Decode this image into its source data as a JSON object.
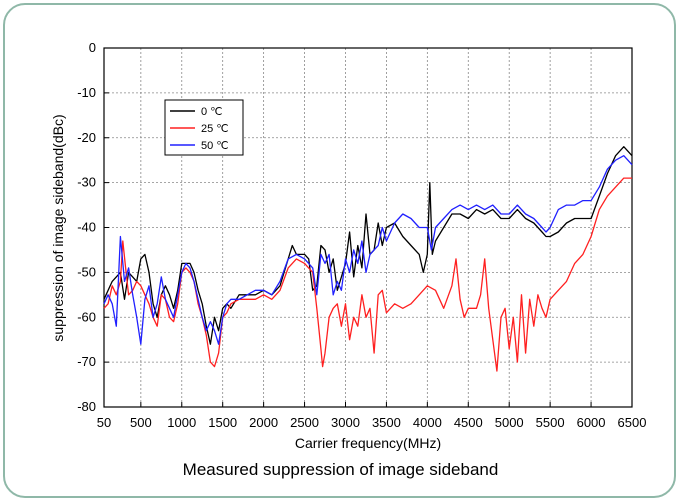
{
  "caption": "Measured suppression of image sideband",
  "chart_data": {
    "type": "line",
    "title": "",
    "xlabel": "Carrier frequency(MHz)",
    "ylabel": "suppression of image sideband(dBc)",
    "xlim": [
      50,
      6500
    ],
    "ylim": [
      -80,
      0
    ],
    "xticks": [
      50,
      500,
      1000,
      1500,
      2000,
      2500,
      3000,
      3500,
      4000,
      4500,
      5000,
      5500,
      6000,
      6500
    ],
    "yticks": [
      0,
      -10,
      -20,
      -30,
      -40,
      -50,
      -60,
      -70,
      -80
    ],
    "grid": true,
    "legend_position": "top-left",
    "series": [
      {
        "name": "0 ℃",
        "color": "#000000",
        "points": [
          [
            50,
            -56
          ],
          [
            150,
            -52
          ],
          [
            250,
            -50
          ],
          [
            300,
            -56
          ],
          [
            350,
            -50
          ],
          [
            450,
            -52
          ],
          [
            500,
            -47
          ],
          [
            550,
            -46
          ],
          [
            600,
            -50
          ],
          [
            650,
            -57
          ],
          [
            700,
            -60
          ],
          [
            750,
            -55
          ],
          [
            800,
            -53
          ],
          [
            850,
            -55
          ],
          [
            900,
            -58
          ],
          [
            950,
            -54
          ],
          [
            1000,
            -48
          ],
          [
            1050,
            -48
          ],
          [
            1100,
            -48
          ],
          [
            1150,
            -50
          ],
          [
            1200,
            -54
          ],
          [
            1250,
            -57
          ],
          [
            1300,
            -62
          ],
          [
            1350,
            -66
          ],
          [
            1400,
            -60
          ],
          [
            1450,
            -63
          ],
          [
            1500,
            -58
          ],
          [
            1550,
            -57
          ],
          [
            1600,
            -58
          ],
          [
            1700,
            -55
          ],
          [
            1800,
            -55
          ],
          [
            1900,
            -55
          ],
          [
            2000,
            -54
          ],
          [
            2100,
            -55
          ],
          [
            2200,
            -53
          ],
          [
            2300,
            -47
          ],
          [
            2350,
            -44
          ],
          [
            2400,
            -46
          ],
          [
            2500,
            -46
          ],
          [
            2550,
            -47
          ],
          [
            2600,
            -54
          ],
          [
            2650,
            -53
          ],
          [
            2700,
            -44
          ],
          [
            2750,
            -45
          ],
          [
            2800,
            -50
          ],
          [
            2850,
            -47
          ],
          [
            2900,
            -54
          ],
          [
            2950,
            -51
          ],
          [
            3000,
            -48
          ],
          [
            3050,
            -41
          ],
          [
            3100,
            -51
          ],
          [
            3150,
            -44
          ],
          [
            3200,
            -49
          ],
          [
            3250,
            -37
          ],
          [
            3300,
            -46
          ],
          [
            3350,
            -45
          ],
          [
            3400,
            -39
          ],
          [
            3450,
            -44
          ],
          [
            3500,
            -40
          ],
          [
            3600,
            -39
          ],
          [
            3700,
            -42
          ],
          [
            3800,
            -44
          ],
          [
            3900,
            -46
          ],
          [
            3950,
            -50
          ],
          [
            4000,
            -46
          ],
          [
            4030,
            -30
          ],
          [
            4060,
            -46
          ],
          [
            4100,
            -43
          ],
          [
            4200,
            -40
          ],
          [
            4300,
            -37
          ],
          [
            4400,
            -37
          ],
          [
            4500,
            -38
          ],
          [
            4600,
            -36
          ],
          [
            4700,
            -37
          ],
          [
            4800,
            -36
          ],
          [
            4900,
            -38
          ],
          [
            5000,
            -38
          ],
          [
            5100,
            -36
          ],
          [
            5200,
            -38
          ],
          [
            5300,
            -39
          ],
          [
            5400,
            -41
          ],
          [
            5450,
            -42
          ],
          [
            5500,
            -42
          ],
          [
            5600,
            -41
          ],
          [
            5700,
            -39
          ],
          [
            5800,
            -38
          ],
          [
            5900,
            -38
          ],
          [
            6000,
            -38
          ],
          [
            6100,
            -33
          ],
          [
            6200,
            -28
          ],
          [
            6300,
            -24
          ],
          [
            6400,
            -22
          ],
          [
            6500,
            -24
          ]
        ]
      },
      {
        "name": "25 ℃",
        "color": "#ff2020",
        "points": [
          [
            50,
            -58
          ],
          [
            100,
            -57
          ],
          [
            150,
            -53
          ],
          [
            200,
            -55
          ],
          [
            250,
            -52
          ],
          [
            280,
            -43
          ],
          [
            320,
            -50
          ],
          [
            350,
            -55
          ],
          [
            400,
            -54
          ],
          [
            450,
            -52
          ],
          [
            500,
            -53
          ],
          [
            550,
            -55
          ],
          [
            600,
            -57
          ],
          [
            650,
            -60
          ],
          [
            700,
            -62
          ],
          [
            750,
            -55
          ],
          [
            800,
            -56
          ],
          [
            850,
            -60
          ],
          [
            900,
            -61
          ],
          [
            950,
            -57
          ],
          [
            1000,
            -50
          ],
          [
            1050,
            -49
          ],
          [
            1100,
            -50
          ],
          [
            1150,
            -52
          ],
          [
            1200,
            -57
          ],
          [
            1250,
            -60
          ],
          [
            1300,
            -64
          ],
          [
            1350,
            -70
          ],
          [
            1400,
            -71
          ],
          [
            1450,
            -68
          ],
          [
            1500,
            -60
          ],
          [
            1550,
            -59
          ],
          [
            1600,
            -57
          ],
          [
            1700,
            -56
          ],
          [
            1800,
            -56
          ],
          [
            1900,
            -56
          ],
          [
            2000,
            -55
          ],
          [
            2100,
            -56
          ],
          [
            2200,
            -54
          ],
          [
            2300,
            -49
          ],
          [
            2400,
            -47
          ],
          [
            2500,
            -48
          ],
          [
            2600,
            -50
          ],
          [
            2650,
            -58
          ],
          [
            2700,
            -67
          ],
          [
            2720,
            -71
          ],
          [
            2750,
            -68
          ],
          [
            2800,
            -60
          ],
          [
            2850,
            -58
          ],
          [
            2900,
            -57
          ],
          [
            2950,
            -62
          ],
          [
            3000,
            -57
          ],
          [
            3050,
            -65
          ],
          [
            3100,
            -60
          ],
          [
            3150,
            -62
          ],
          [
            3200,
            -55
          ],
          [
            3250,
            -60
          ],
          [
            3300,
            -58
          ],
          [
            3350,
            -68
          ],
          [
            3400,
            -55
          ],
          [
            3450,
            -54
          ],
          [
            3500,
            -59
          ],
          [
            3600,
            -57
          ],
          [
            3700,
            -58
          ],
          [
            3800,
            -57
          ],
          [
            3900,
            -55
          ],
          [
            4000,
            -53
          ],
          [
            4100,
            -54
          ],
          [
            4200,
            -58
          ],
          [
            4300,
            -53
          ],
          [
            4350,
            -47
          ],
          [
            4400,
            -56
          ],
          [
            4450,
            -60
          ],
          [
            4500,
            -58
          ],
          [
            4600,
            -58
          ],
          [
            4650,
            -55
          ],
          [
            4700,
            -47
          ],
          [
            4750,
            -58
          ],
          [
            4800,
            -65
          ],
          [
            4850,
            -72
          ],
          [
            4900,
            -60
          ],
          [
            4950,
            -58
          ],
          [
            5000,
            -67
          ],
          [
            5050,
            -60
          ],
          [
            5100,
            -70
          ],
          [
            5150,
            -55
          ],
          [
            5200,
            -68
          ],
          [
            5250,
            -56
          ],
          [
            5300,
            -62
          ],
          [
            5350,
            -55
          ],
          [
            5400,
            -58
          ],
          [
            5450,
            -60
          ],
          [
            5500,
            -56
          ],
          [
            5600,
            -54
          ],
          [
            5700,
            -52
          ],
          [
            5800,
            -48
          ],
          [
            5900,
            -46
          ],
          [
            6000,
            -42
          ],
          [
            6100,
            -36
          ],
          [
            6200,
            -33
          ],
          [
            6300,
            -31
          ],
          [
            6400,
            -29
          ],
          [
            6500,
            -29
          ]
        ]
      },
      {
        "name": "50 ℃",
        "color": "#2020ff",
        "points": [
          [
            50,
            -57
          ],
          [
            100,
            -55
          ],
          [
            150,
            -57
          ],
          [
            200,
            -62
          ],
          [
            250,
            -42
          ],
          [
            300,
            -52
          ],
          [
            350,
            -49
          ],
          [
            400,
            -55
          ],
          [
            450,
            -60
          ],
          [
            500,
            -66
          ],
          [
            550,
            -56
          ],
          [
            600,
            -53
          ],
          [
            650,
            -60
          ],
          [
            700,
            -57
          ],
          [
            750,
            -51
          ],
          [
            800,
            -56
          ],
          [
            850,
            -58
          ],
          [
            900,
            -60
          ],
          [
            950,
            -55
          ],
          [
            1000,
            -50
          ],
          [
            1050,
            -48
          ],
          [
            1100,
            -49
          ],
          [
            1150,
            -52
          ],
          [
            1200,
            -56
          ],
          [
            1250,
            -60
          ],
          [
            1300,
            -63
          ],
          [
            1350,
            -61
          ],
          [
            1400,
            -63
          ],
          [
            1450,
            -66
          ],
          [
            1500,
            -60
          ],
          [
            1550,
            -57
          ],
          [
            1600,
            -56
          ],
          [
            1700,
            -56
          ],
          [
            1800,
            -55
          ],
          [
            1900,
            -54
          ],
          [
            2000,
            -54
          ],
          [
            2100,
            -55
          ],
          [
            2200,
            -52
          ],
          [
            2300,
            -47
          ],
          [
            2400,
            -46
          ],
          [
            2500,
            -47
          ],
          [
            2600,
            -49
          ],
          [
            2650,
            -55
          ],
          [
            2700,
            -46
          ],
          [
            2750,
            -48
          ],
          [
            2800,
            -46
          ],
          [
            2850,
            -55
          ],
          [
            2900,
            -52
          ],
          [
            2950,
            -54
          ],
          [
            3000,
            -47
          ],
          [
            3050,
            -50
          ],
          [
            3100,
            -45
          ],
          [
            3150,
            -48
          ],
          [
            3200,
            -43
          ],
          [
            3250,
            -50
          ],
          [
            3300,
            -46
          ],
          [
            3350,
            -45
          ],
          [
            3400,
            -44
          ],
          [
            3450,
            -40
          ],
          [
            3500,
            -43
          ],
          [
            3600,
            -39
          ],
          [
            3700,
            -37
          ],
          [
            3800,
            -38
          ],
          [
            3900,
            -40
          ],
          [
            4000,
            -40
          ],
          [
            4050,
            -45
          ],
          [
            4100,
            -40
          ],
          [
            4200,
            -38
          ],
          [
            4300,
            -36
          ],
          [
            4400,
            -35
          ],
          [
            4500,
            -36
          ],
          [
            4600,
            -35
          ],
          [
            4700,
            -36
          ],
          [
            4800,
            -35
          ],
          [
            4900,
            -37
          ],
          [
            5000,
            -37
          ],
          [
            5100,
            -35
          ],
          [
            5200,
            -37
          ],
          [
            5300,
            -38
          ],
          [
            5400,
            -40
          ],
          [
            5450,
            -41
          ],
          [
            5500,
            -40
          ],
          [
            5600,
            -36
          ],
          [
            5700,
            -35
          ],
          [
            5800,
            -35
          ],
          [
            5900,
            -34
          ],
          [
            6000,
            -34
          ],
          [
            6100,
            -31
          ],
          [
            6200,
            -27
          ],
          [
            6300,
            -25
          ],
          [
            6400,
            -24
          ],
          [
            6500,
            -26
          ]
        ]
      }
    ]
  }
}
